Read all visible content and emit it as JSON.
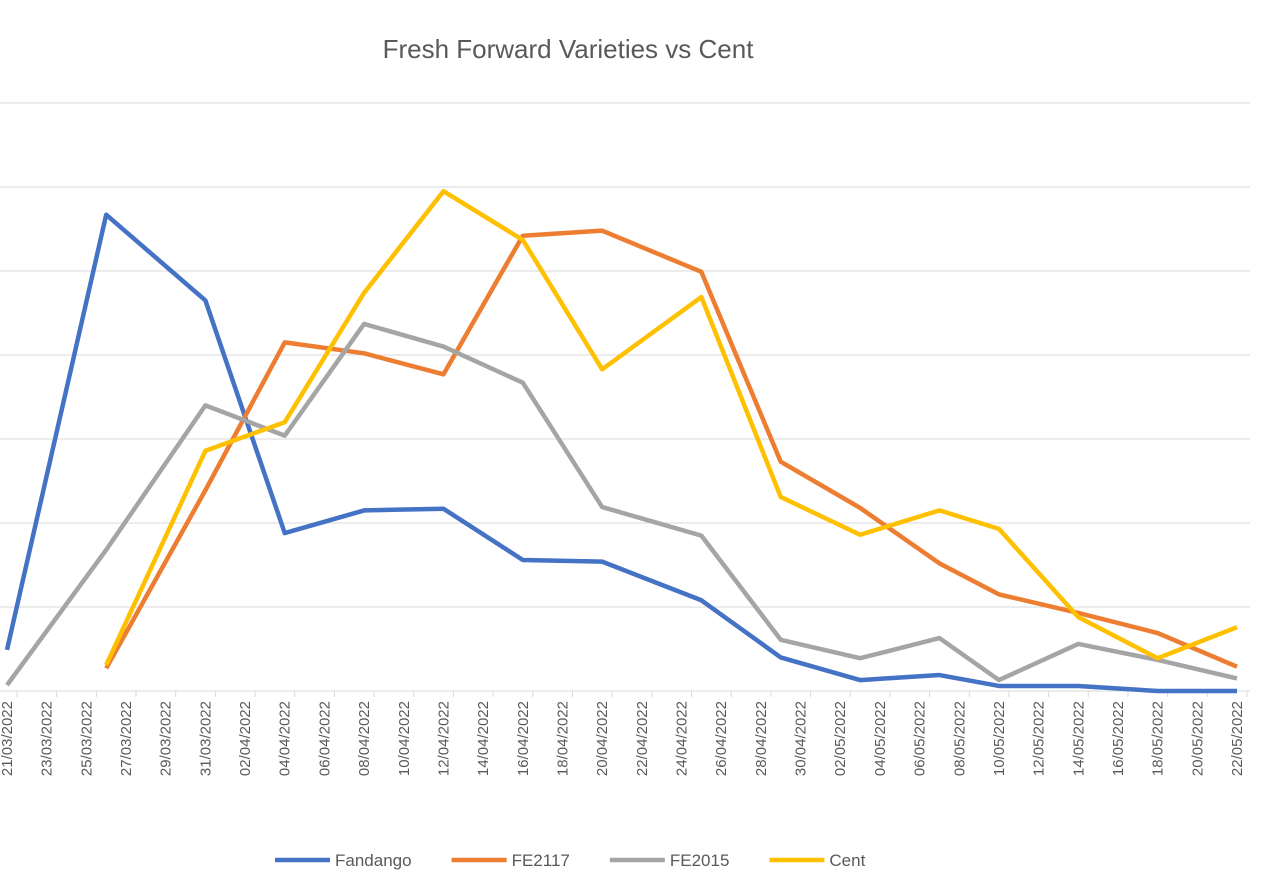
{
  "chart_data": {
    "type": "line",
    "title": "Fresh Forward Varieties vs Cent",
    "x": [
      "21/03/2022",
      "26/03/2022",
      "31/03/2022",
      "04/04/2022",
      "08/04/2022",
      "12/04/2022",
      "16/04/2022",
      "20/04/2022",
      "25/04/2022",
      "29/04/2022",
      "03/05/2022",
      "07/05/2022",
      "10/05/2022",
      "14/05/2022",
      "18/05/2022",
      "22/05/2022"
    ],
    "series": [
      {
        "name": "Fandango",
        "color": "#4472c4",
        "values": [
          0.49,
          5.67,
          4.65,
          1.88,
          2.15,
          2.17,
          1.56,
          1.54,
          1.08,
          0.4,
          0.13,
          0.19,
          0.06,
          0.06,
          0,
          0
        ]
      },
      {
        "name": "FE2117",
        "color": "#ed7d31",
        "values": [
          null,
          0.27,
          2.39,
          4.15,
          4.02,
          3.77,
          5.42,
          5.48,
          4.99,
          2.73,
          2.18,
          1.52,
          1.15,
          0.93,
          0.69,
          0.29
        ]
      },
      {
        "name": "FE2015",
        "color": "#a5a5a5",
        "values": [
          0.07,
          1.68,
          3.4,
          3.04,
          4.37,
          4.1,
          3.67,
          2.19,
          1.85,
          0.61,
          0.39,
          0.63,
          0.13,
          0.56,
          0.37,
          0.15
        ]
      },
      {
        "name": "Cent",
        "color": "#ffc000",
        "values": [
          null,
          0.31,
          2.86,
          3.2,
          4.74,
          5.95,
          5.37,
          3.83,
          4.69,
          2.31,
          1.86,
          2.15,
          1.93,
          0.88,
          0.39,
          0.76
        ]
      }
    ],
    "xlim": [
      "21/03/2022",
      "22/05/2022"
    ],
    "xticks": [
      "21/03/2022",
      "23/03/2022",
      "25/03/2022",
      "27/03/2022",
      "29/03/2022",
      "31/03/2022",
      "02/04/2022",
      "04/04/2022",
      "06/04/2022",
      "08/04/2022",
      "10/04/2022",
      "12/04/2022",
      "14/04/2022",
      "16/04/2022",
      "18/04/2022",
      "20/04/2022",
      "22/04/2022",
      "24/04/2022",
      "26/04/2022",
      "28/04/2022",
      "30/04/2022",
      "02/05/2022",
      "04/05/2022",
      "06/05/2022",
      "08/05/2022",
      "10/05/2022",
      "12/05/2022",
      "14/05/2022",
      "16/05/2022",
      "18/05/2022",
      "20/05/2022",
      "22/05/2022"
    ],
    "ylim": [
      0,
      7
    ],
    "yticks": [
      1,
      2,
      3,
      4,
      5,
      6,
      7
    ],
    "grid": true,
    "legend": "bottom"
  }
}
